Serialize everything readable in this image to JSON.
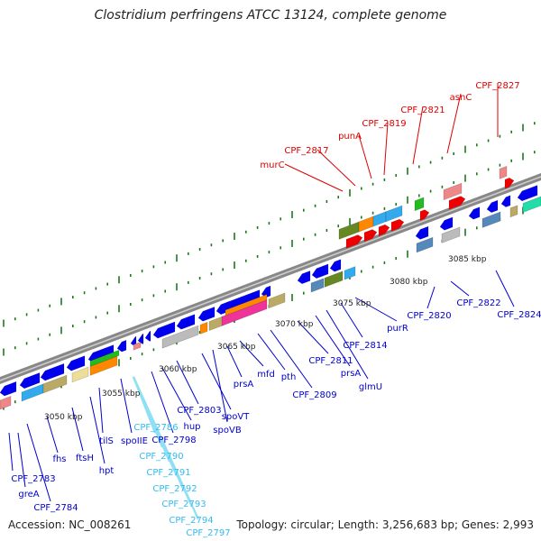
{
  "title": "Clostridium perfringens ATCC 13124, complete genome",
  "accession": "Accession: NC_008261",
  "summary": "Topology: circular; Length: 3,256,683 bp; Genes: 2,993",
  "colors": {
    "backbone": "#888888",
    "tick": "#1a7a1a",
    "forward_label": "#dd0000",
    "reverse_label": "#0000cc",
    "rna_label": "#33bbee",
    "cds": "#0000ee",
    "cog_orange": "#ff8800",
    "cog_olive": "#668822",
    "cog_cyan": "#33aaee",
    "cog_khaki": "#bbaa66",
    "cog_grey": "#bbbbbb",
    "cog_green": "#22bb22",
    "cog_pink": "#ee3399",
    "cog_salmon": "#ee8888",
    "cog_red": "#ee0000",
    "cog_steel": "#5588bb",
    "cog_aqua": "#22ddaa",
    "cog_yellow": "#eedd99"
  },
  "kbp_labels": [
    "3050 kbp",
    "3055 kbp",
    "3060 kbp",
    "3065 kbp",
    "3070 kbp",
    "3075 kbp",
    "3080 kbp",
    "3085 kbp"
  ],
  "forward_genes": [
    "murC",
    "CPF_2817",
    "punA",
    "CPF_2819",
    "CPF_2821",
    "asnC",
    "CPF_2827"
  ],
  "reverse_genes": [
    "CPF_2783",
    "greA",
    "CPF_2784",
    "fhs",
    "ftsH",
    "hpt",
    "tilS",
    "spoIIE",
    "CPF_2798",
    "hup",
    "CPF_2803",
    "spoVT",
    "spoVB",
    "prsA",
    "mfd",
    "pth",
    "CPF_2809",
    "CPF_2811",
    "prsA",
    "glmU",
    "CPF_2814",
    "purR",
    "CPF_2820",
    "CPF_2822",
    "CPF_2824"
  ],
  "rna_genes": [
    "CPF_2786",
    "CPF_2790",
    "CPF_2791",
    "CPF_2792",
    "CPF_2793",
    "CPF_2794",
    "CPF_2797"
  ]
}
